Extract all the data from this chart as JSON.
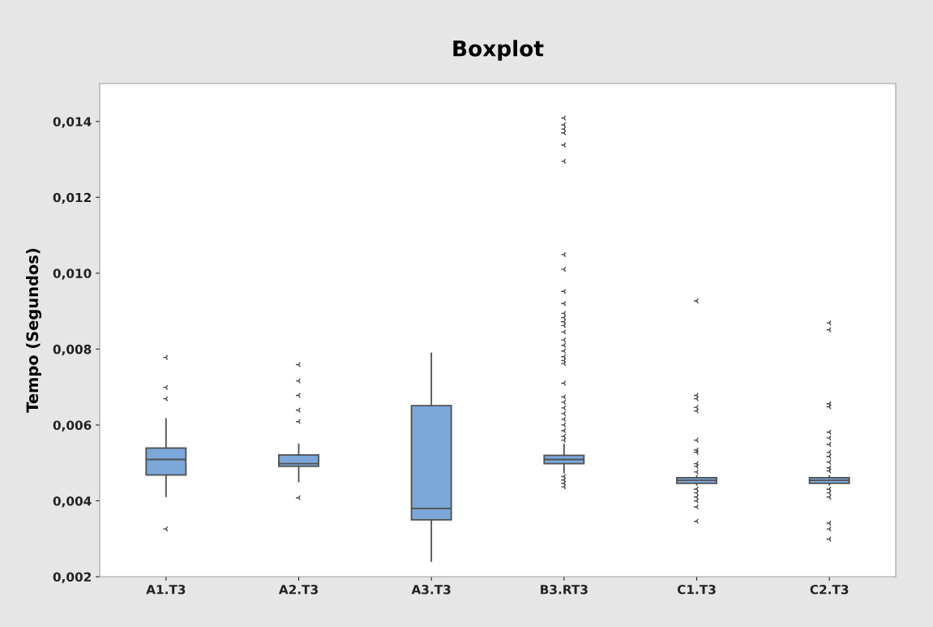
{
  "chart_data": {
    "type": "box",
    "title": "Boxplot",
    "ylabel": "Tempo (Segundos)",
    "categories": [
      "A1.T3",
      "A2.T3",
      "A3.T3",
      "B3.RT3",
      "C1.T3",
      "C2.T3"
    ],
    "color": "#7ba7d9",
    "boxes": [
      {
        "low": 0.00412,
        "q1": 0.00468,
        "median": 0.00509,
        "q3": 0.00539,
        "high": 0.00616,
        "outliers": [
          0.00778,
          0.00699,
          0.00669,
          0.00326
        ]
      },
      {
        "low": 0.00451,
        "q1": 0.00491,
        "median": 0.00498,
        "q3": 0.00521,
        "high": 0.00549,
        "outliers": [
          0.00759,
          0.00716,
          0.00678,
          0.00639,
          0.00609,
          0.00408
        ]
      },
      {
        "low": 0.00241,
        "q1": 0.0035,
        "median": 0.0038,
        "q3": 0.00651,
        "high": 0.00789
      },
      {
        "low": 0.00474,
        "q1": 0.00498,
        "median": 0.00509,
        "q3": 0.0052,
        "high": 0.00549,
        "outliers": [
          0.01409,
          0.01391,
          0.0138,
          0.0137,
          0.01338,
          0.01295,
          0.01049,
          0.0101,
          0.00952,
          0.0092,
          0.00894,
          0.00883,
          0.00872,
          0.00862,
          0.00845,
          0.00824,
          0.0081,
          0.00795,
          0.0078,
          0.0077,
          0.00762,
          0.0071,
          0.00674,
          0.0066,
          0.00645,
          0.0063,
          0.00615,
          0.006,
          0.00585,
          0.0057,
          0.0056,
          0.00464,
          0.00455,
          0.00446,
          0.00437
        ]
      },
      {
        "low": 0.00442,
        "q1": 0.00446,
        "median": 0.00454,
        "q3": 0.00461,
        "high": 0.00466,
        "outliers": [
          0.00927,
          0.00678,
          0.00669,
          0.00646,
          0.00637,
          0.0056,
          0.00534,
          0.00528,
          0.00498,
          0.00491,
          0.00476,
          0.00431,
          0.00421,
          0.0041,
          0.004,
          0.00384,
          0.00346
        ]
      },
      {
        "low": 0.00442,
        "q1": 0.00446,
        "median": 0.00454,
        "q3": 0.00461,
        "high": 0.00466,
        "outliers": [
          0.00869,
          0.00851,
          0.00656,
          0.00648,
          0.00581,
          0.00566,
          0.00549,
          0.00528,
          0.00517,
          0.00502,
          0.00487,
          0.00479,
          0.00431,
          0.00421,
          0.0041,
          0.00341,
          0.00326,
          0.00299
        ]
      }
    ],
    "ylim": [
      0.002,
      0.015
    ],
    "yticks": [
      {
        "value": 0.002,
        "label": "0,002"
      },
      {
        "value": 0.004,
        "label": "0,004"
      },
      {
        "value": 0.006,
        "label": "0,006"
      },
      {
        "value": 0.008,
        "label": "0,008"
      },
      {
        "value": 0.01,
        "label": "0,010"
      },
      {
        "value": 0.012,
        "label": "0,012"
      },
      {
        "value": 0.014,
        "label": "0,014"
      }
    ],
    "grid": false
  }
}
